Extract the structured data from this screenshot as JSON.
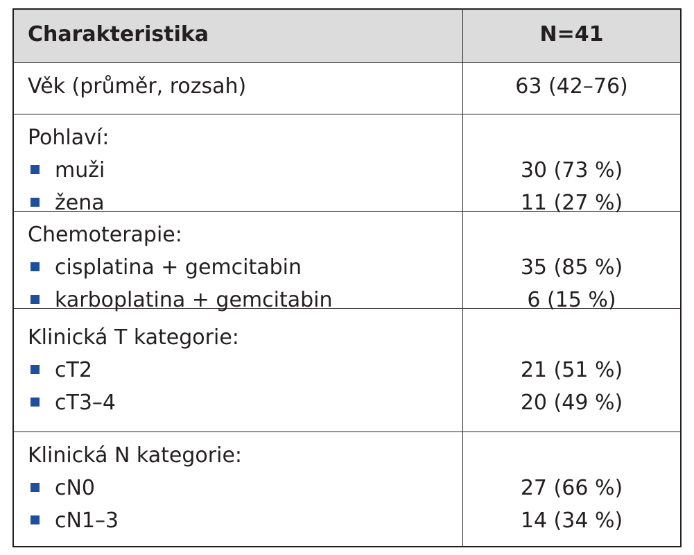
{
  "header": {
    "characteristic": "Charakteristika",
    "n": "N=41"
  },
  "rows": [
    {
      "label": "Věk (průměr, rozsah)",
      "value": "63 (42–76)"
    },
    {
      "label": "Pohlaví:",
      "items": [
        {
          "label": "muži",
          "value": "30 (73 %)"
        },
        {
          "label": "žena",
          "value": "11 (27 %)"
        }
      ]
    },
    {
      "label": "Chemoterapie:",
      "items": [
        {
          "label": "cisplatina + gemcitabin",
          "value": "35 (85 %)"
        },
        {
          "label": "karboplatina + gemcitabin",
          "value": "6 (15 %)"
        }
      ]
    },
    {
      "label": "Klinická T kategorie:",
      "items": [
        {
          "label": "cT2",
          "value": "21 (51 %)"
        },
        {
          "label": "cT3–4",
          "value": "20 (49 %)"
        }
      ]
    },
    {
      "label": "Klinická N kategorie:",
      "items": [
        {
          "label": "cN0",
          "value": "27 (66 %)"
        },
        {
          "label": "cN1–3",
          "value": "14 (34 %)"
        }
      ]
    }
  ]
}
